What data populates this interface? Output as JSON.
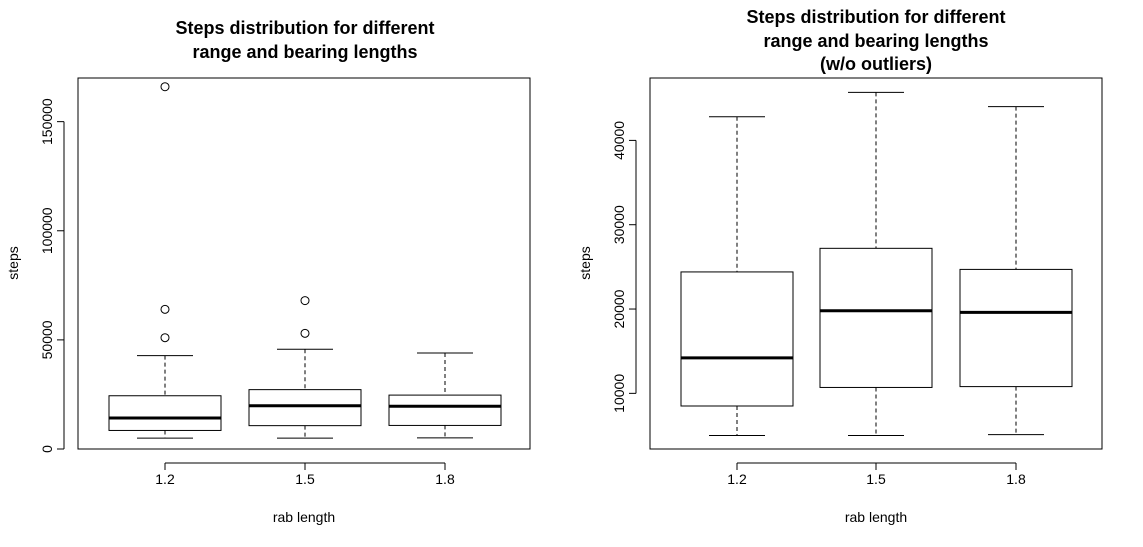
{
  "chart_data": [
    {
      "type": "boxplot",
      "title": [
        "Steps distribution for different",
        "range and bearing lengths"
      ],
      "xlabel": "rab length",
      "ylabel": "steps",
      "categories": [
        "1.2",
        "1.5",
        "1.8"
      ],
      "ylim": [
        0,
        170000
      ],
      "yticks": [
        0,
        50000,
        100000,
        150000
      ],
      "ytick_labels": [
        "0",
        "50000",
        "100000",
        "150000"
      ],
      "grid": false,
      "boxes": [
        {
          "category": "1.2",
          "whisker_low": 5000,
          "q1": 8500,
          "median": 14200,
          "q3": 24400,
          "whisker_high": 42800,
          "outliers": [
            51000,
            64000,
            166000
          ]
        },
        {
          "category": "1.5",
          "whisker_low": 5000,
          "q1": 10700,
          "median": 19800,
          "q3": 27200,
          "whisker_high": 45700,
          "outliers": [
            53000,
            68000
          ]
        },
        {
          "category": "1.8",
          "whisker_low": 5100,
          "q1": 10800,
          "median": 19600,
          "q3": 24700,
          "whisker_high": 44000,
          "outliers": []
        }
      ]
    },
    {
      "type": "boxplot",
      "title": [
        "Steps distribution for different",
        "range and bearing lengths",
        "(w/o outliers)"
      ],
      "xlabel": "rab length",
      "ylabel": "steps",
      "categories": [
        "1.2",
        "1.5",
        "1.8"
      ],
      "ylim": [
        3400,
        47400
      ],
      "yticks": [
        10000,
        20000,
        30000,
        40000
      ],
      "ytick_labels": [
        "10000",
        "20000",
        "30000",
        "40000"
      ],
      "grid": false,
      "boxes": [
        {
          "category": "1.2",
          "whisker_low": 5000,
          "q1": 8500,
          "median": 14200,
          "q3": 24400,
          "whisker_high": 42800,
          "outliers": []
        },
        {
          "category": "1.5",
          "whisker_low": 5000,
          "q1": 10700,
          "median": 19800,
          "q3": 27200,
          "whisker_high": 45700,
          "outliers": []
        },
        {
          "category": "1.8",
          "whisker_low": 5100,
          "q1": 10800,
          "median": 19600,
          "q3": 24700,
          "whisker_high": 44000,
          "outliers": []
        }
      ]
    }
  ]
}
